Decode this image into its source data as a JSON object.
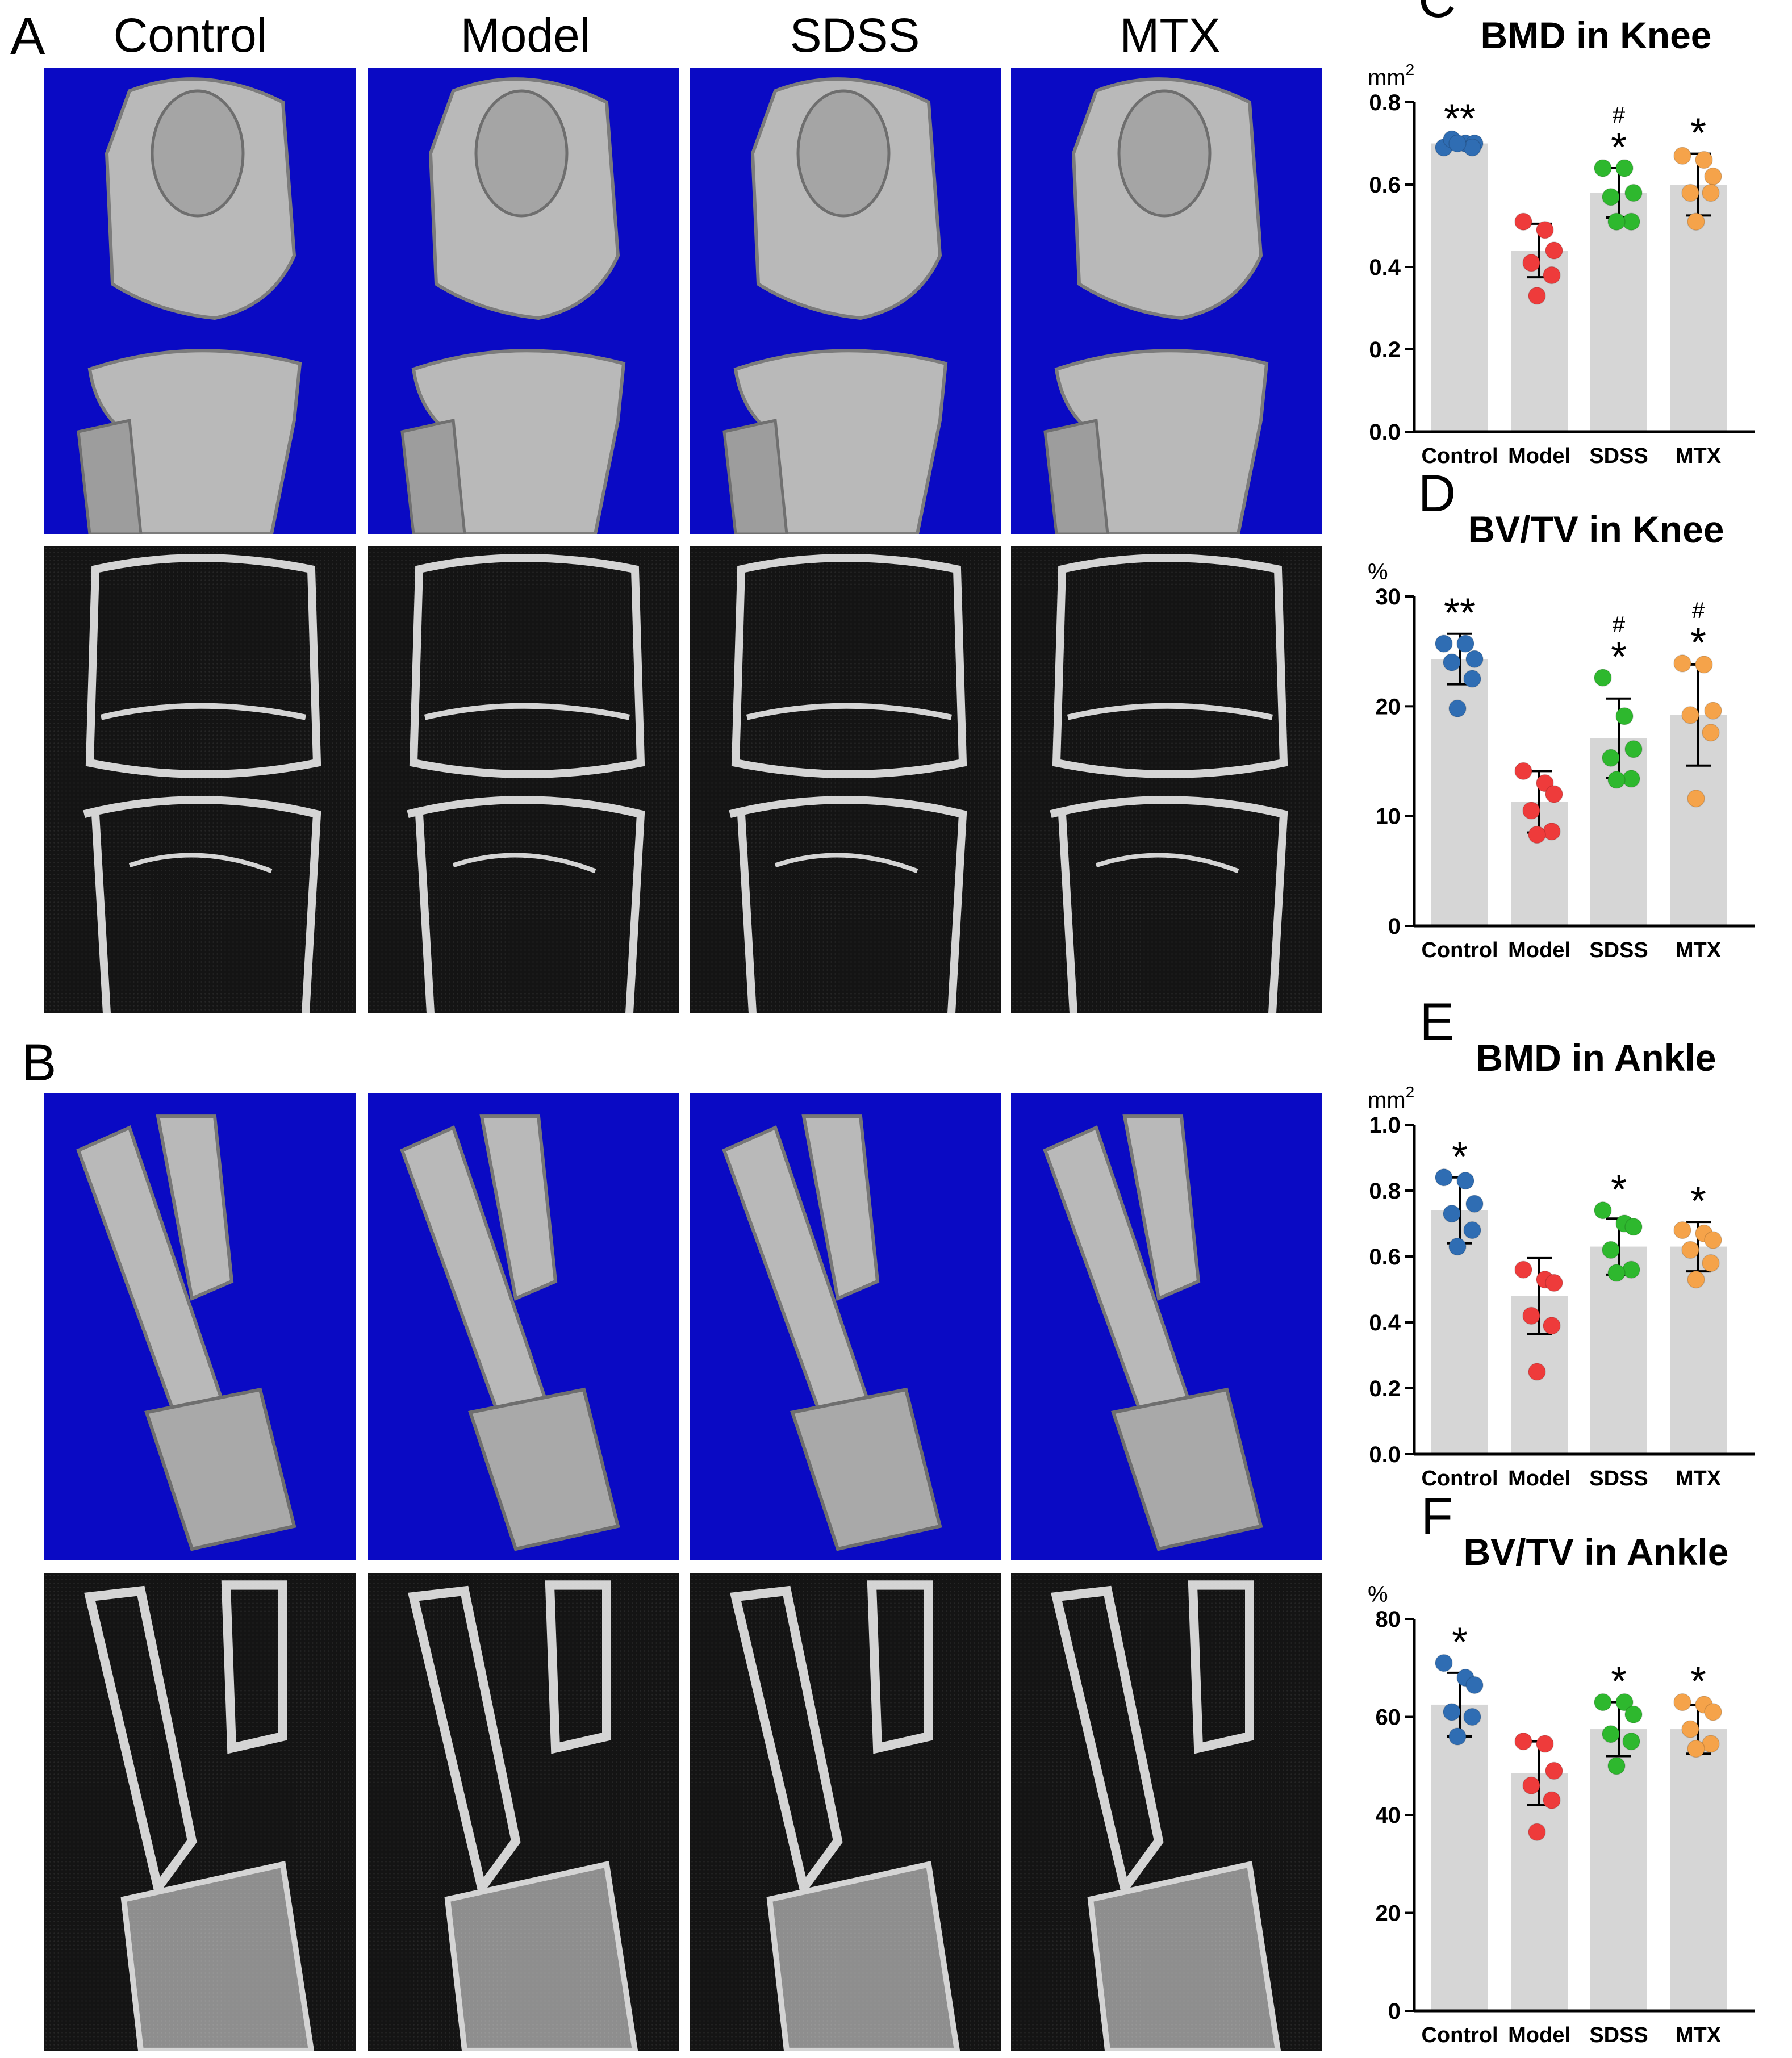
{
  "figure": {
    "panel_labels": [
      "A",
      "B"
    ],
    "column_headers": [
      "Control",
      "Model",
      "SDSS",
      "MTX"
    ],
    "colors": {
      "render_background": "#0a0ac4",
      "bone_render": "#b9b9b9",
      "ct_background": "#141414",
      "ct_bone": "#d4d4d4",
      "bar": "#d6d6d6",
      "control": "#2f6db3",
      "model": "#ee3b3b",
      "sdss": "#2eb82e",
      "mtx": "#f5a34a"
    }
  },
  "chart_data": [
    {
      "panel": "C",
      "type": "bar",
      "title": "BMD in Knee",
      "unit_label": "mm",
      "unit_sup": "2",
      "categories": [
        "Control",
        "Model",
        "SDSS",
        "MTX"
      ],
      "ylim": [
        0,
        0.8
      ],
      "yticks": [
        0.0,
        0.2,
        0.4,
        0.6,
        0.8
      ],
      "tick_decimals": 1,
      "values": [
        0.7,
        0.44,
        0.58,
        0.6
      ],
      "sd": [
        0.01,
        0.065,
        0.06,
        0.075
      ],
      "points": [
        [
          0.69,
          0.7,
          0.7,
          0.71,
          0.69,
          0.7
        ],
        [
          0.51,
          0.49,
          0.44,
          0.41,
          0.38,
          0.33
        ],
        [
          0.64,
          0.64,
          0.58,
          0.57,
          0.51,
          0.51
        ],
        [
          0.67,
          0.66,
          0.62,
          0.58,
          0.58,
          0.51
        ]
      ],
      "annotations": [
        "**",
        "",
        "*",
        "*"
      ],
      "hash_marks": [
        "",
        "",
        "#",
        ""
      ],
      "grid": false,
      "legend": "none"
    },
    {
      "panel": "D",
      "type": "bar",
      "title": "BV/TV in Knee",
      "unit_label": "%",
      "unit_sup": "",
      "categories": [
        "Control",
        "Model",
        "SDSS",
        "MTX"
      ],
      "ylim": [
        0,
        30
      ],
      "yticks": [
        0,
        10,
        20,
        30
      ],
      "tick_decimals": 0,
      "values": [
        24.3,
        11.3,
        17.1,
        19.2
      ],
      "sd": [
        2.3,
        2.8,
        3.6,
        4.6
      ],
      "points": [
        [
          25.7,
          25.7,
          24.3,
          24.0,
          22.5,
          19.8
        ],
        [
          14.1,
          13.0,
          12.0,
          10.5,
          8.6,
          8.3
        ],
        [
          22.6,
          19.1,
          16.1,
          15.3,
          13.4,
          13.3
        ],
        [
          23.9,
          23.8,
          19.6,
          19.2,
          17.6,
          11.6
        ]
      ],
      "annotations": [
        "**",
        "",
        "*",
        "*"
      ],
      "hash_marks": [
        "",
        "",
        "#",
        "#"
      ],
      "grid": false,
      "legend": "none"
    },
    {
      "panel": "E",
      "type": "bar",
      "title": "BMD in Ankle",
      "unit_label": "mm",
      "unit_sup": "2",
      "categories": [
        "Control",
        "Model",
        "SDSS",
        "MTX"
      ],
      "ylim": [
        0,
        1.0
      ],
      "yticks": [
        0.0,
        0.2,
        0.4,
        0.6,
        0.8,
        1.0
      ],
      "tick_decimals": 1,
      "values": [
        0.74,
        0.48,
        0.63,
        0.63
      ],
      "sd": [
        0.1,
        0.115,
        0.085,
        0.075
      ],
      "points": [
        [
          0.84,
          0.83,
          0.76,
          0.73,
          0.68,
          0.63
        ],
        [
          0.56,
          0.53,
          0.52,
          0.42,
          0.39,
          0.25
        ],
        [
          0.74,
          0.7,
          0.69,
          0.62,
          0.56,
          0.55
        ],
        [
          0.68,
          0.67,
          0.65,
          0.62,
          0.58,
          0.53
        ]
      ],
      "annotations": [
        "*",
        "",
        "*",
        "*"
      ],
      "hash_marks": [
        "",
        "",
        "",
        ""
      ],
      "grid": false,
      "legend": "none"
    },
    {
      "panel": "F",
      "type": "bar",
      "title": "BV/TV in Ankle",
      "unit_label": "%",
      "unit_sup": "",
      "categories": [
        "Control",
        "Model",
        "SDSS",
        "MTX"
      ],
      "ylim": [
        0,
        80
      ],
      "yticks": [
        0,
        20,
        40,
        60,
        80
      ],
      "tick_decimals": 0,
      "values": [
        62.5,
        48.5,
        57.5,
        57.5
      ],
      "sd": [
        6.5,
        6.5,
        5.5,
        5.0
      ],
      "points": [
        [
          71.0,
          68.0,
          66.5,
          61.0,
          60.0,
          56.0
        ],
        [
          55.0,
          54.5,
          49.0,
          46.0,
          43.0,
          36.5
        ],
        [
          63.0,
          63.0,
          60.5,
          56.5,
          55.0,
          50.0
        ],
        [
          63.0,
          62.5,
          61.0,
          57.5,
          54.5,
          53.5
        ]
      ],
      "annotations": [
        "*",
        "",
        "*",
        "*"
      ],
      "hash_marks": [
        "",
        "",
        "",
        ""
      ],
      "grid": false,
      "legend": "none"
    }
  ]
}
